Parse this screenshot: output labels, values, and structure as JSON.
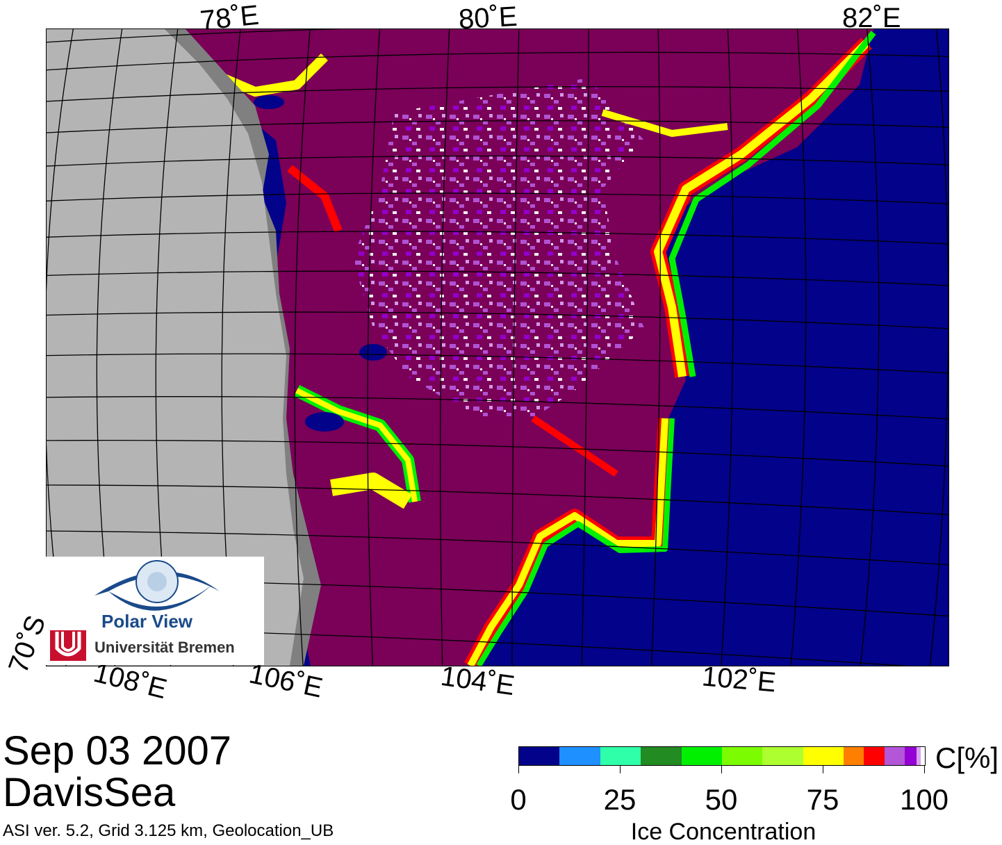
{
  "map": {
    "top_labels": [
      "78˚E",
      "80˚E",
      "82˚E"
    ],
    "bottom_labels": [
      "70˚S",
      "108˚E",
      "106˚E",
      "104˚E",
      "102˚E"
    ]
  },
  "logo": {
    "name": "Polar View",
    "institution": "Universität Bremen",
    "brand_color": "#1a4a8a",
    "accent_color": "#c8102e"
  },
  "caption": {
    "date": "Sep 03 2007",
    "region": "DavisSea",
    "info": "ASI ver. 5.2,  Grid 3.125 km, Geolocation_UB"
  },
  "colorbar": {
    "unit": "C[%]",
    "title": "Ice Concentration",
    "ticks": [
      "0",
      "25",
      "50",
      "75",
      "100"
    ],
    "segments": [
      {
        "from": 0,
        "to": 10,
        "color": "#02028a"
      },
      {
        "from": 10,
        "to": 20,
        "color": "#1e90ff"
      },
      {
        "from": 20,
        "to": 30,
        "color": "#2effa8"
      },
      {
        "from": 30,
        "to": 40,
        "color": "#228b22"
      },
      {
        "from": 40,
        "to": 50,
        "color": "#00f000"
      },
      {
        "from": 50,
        "to": 60,
        "color": "#7cfc00"
      },
      {
        "from": 60,
        "to": 70,
        "color": "#adff2f"
      },
      {
        "from": 70,
        "to": 80,
        "color": "#ffff00"
      },
      {
        "from": 80,
        "to": 85,
        "color": "#ff8000"
      },
      {
        "from": 85,
        "to": 90,
        "color": "#ff0000"
      },
      {
        "from": 90,
        "to": 95,
        "color": "#b456d8"
      },
      {
        "from": 95,
        "to": 98,
        "color": "#9400d3"
      },
      {
        "from": 98,
        "to": 99,
        "color": "#d8a0f0"
      },
      {
        "from": 99,
        "to": 100,
        "color": "#ffffff"
      }
    ]
  },
  "colors": {
    "open_water": "#02028a",
    "consolidated_ice": "#7a0058",
    "land": "#b4b4b4",
    "ice_shelf": "#808080"
  }
}
